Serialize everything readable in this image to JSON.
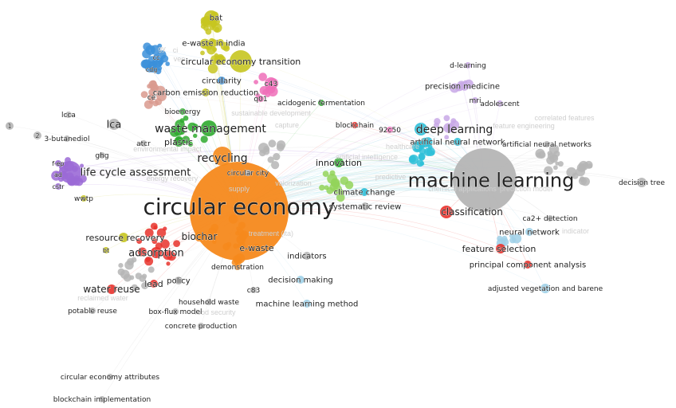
{
  "colors": {
    "orange": "#f5891c",
    "red": "#e8322c",
    "green": "#2eaa2e",
    "lightgreen": "#93d35a",
    "yellow": "#c7c520",
    "blue": "#3b8fd9",
    "purple": "#9b6ad6",
    "cyan": "#2ebfd8",
    "pink": "#ef6fb9",
    "salmon": "#d99a8e",
    "gray": "#b5b5b5",
    "lightblue": "#9fd0e8",
    "lightpurple": "#c8a8e6",
    "lightpink": "#f3a9c6"
  },
  "nodes": [
    {
      "label": "circular economy",
      "color": "orange",
      "size": 10
    },
    {
      "label": "machine learning",
      "color": "gray",
      "size": 8
    },
    {
      "label": "waste management",
      "color": "green",
      "size": 5
    },
    {
      "label": "recycling",
      "color": "orange",
      "size": 5
    },
    {
      "label": "life cycle assessment",
      "color": "purple",
      "size": 5
    },
    {
      "label": "deep learning",
      "color": "cyan",
      "size": 4
    },
    {
      "label": "classification",
      "color": "red",
      "size": 4
    },
    {
      "label": "lca",
      "color": "gray",
      "size": 3
    },
    {
      "label": "adsorption",
      "color": "red",
      "size": 3
    },
    {
      "label": "biochar",
      "color": "orange",
      "size": 3
    },
    {
      "label": "resource recovery",
      "color": "yellow",
      "size": 3
    },
    {
      "label": "water reuse",
      "color": "red",
      "size": 3
    },
    {
      "label": "circular economy transition",
      "color": "yellow",
      "size": 3
    },
    {
      "label": "plastic",
      "color": "green",
      "size": 2
    },
    {
      "label": "innovation",
      "color": "green",
      "size": 2
    },
    {
      "label": "feature selection",
      "color": "red",
      "size": 2
    },
    {
      "label": "e-waste",
      "color": "orange",
      "size": 2
    },
    {
      "label": "lead",
      "color": "red",
      "size": 2
    },
    {
      "label": "policy",
      "color": "gray",
      "size": 2
    },
    {
      "label": "precision medicine",
      "color": "lightpurple",
      "size": 2
    },
    {
      "label": "artificial neural network",
      "color": "cyan",
      "size": 2
    },
    {
      "label": "climate change",
      "color": "cyan",
      "size": 2
    },
    {
      "label": "systematic review",
      "color": "gray",
      "size": 2
    },
    {
      "label": "neural network",
      "color": "lightblue",
      "size": 2
    },
    {
      "label": "principal component analysis",
      "color": "red",
      "size": 2
    },
    {
      "label": "decision making",
      "color": "lightblue",
      "size": 2
    },
    {
      "label": "machine learning method",
      "color": "lightblue",
      "size": 2
    },
    {
      "label": "indicators",
      "color": "gray",
      "size": 2
    },
    {
      "label": "circularity",
      "color": "blue",
      "size": 2
    },
    {
      "label": "carbon emission reduction",
      "color": "yellow",
      "size": 2
    },
    {
      "label": "e-waste in india",
      "color": "yellow",
      "size": 2
    },
    {
      "label": "bat",
      "color": "yellow",
      "size": 2
    },
    {
      "label": "c43",
      "color": "pink",
      "size": 2
    },
    {
      "label": "q01",
      "color": "pink",
      "size": 1
    },
    {
      "label": "acidogenic fermentation",
      "color": "green",
      "size": 1
    },
    {
      "label": "blockchain",
      "color": "red",
      "size": 1
    },
    {
      "label": "92c50",
      "color": "pink",
      "size": 1
    },
    {
      "label": "d-learning",
      "color": "lightpurple",
      "size": 1
    },
    {
      "label": "mri",
      "color": "lightpurple",
      "size": 1
    },
    {
      "label": "adolescent",
      "color": "lightpurple",
      "size": 1
    },
    {
      "label": "artificial neural networks",
      "color": "gray",
      "size": 1
    },
    {
      "label": "decision tree",
      "color": "gray",
      "size": 1
    },
    {
      "label": "ca2+ detection",
      "color": "gray",
      "size": 1
    },
    {
      "label": "adjusted vegetation and barene",
      "color": "lightblue",
      "size": 1
    },
    {
      "label": "circular city",
      "color": "gray",
      "size": 1
    },
    {
      "label": "bioenergy",
      "color": "green",
      "size": 1
    },
    {
      "label": "atcr",
      "color": "gray",
      "size": 1
    },
    {
      "label": "ghg",
      "color": "gray",
      "size": 1
    },
    {
      "label": "wwtp",
      "color": "yellow",
      "size": 1
    },
    {
      "label": "lcca",
      "color": "gray",
      "size": 1
    },
    {
      "label": "3-butanediol",
      "color": "gray",
      "size": 1
    },
    {
      "label": "cstr",
      "color": "purple",
      "size": 1
    },
    {
      "label": "f-ep",
      "color": "purple",
      "size": 1
    },
    {
      "label": "ad",
      "color": "purple",
      "size": 1
    },
    {
      "label": "cc",
      "color": "blue",
      "size": 1
    },
    {
      "label": "cdg",
      "color": "blue",
      "size": 1
    },
    {
      "label": "ce",
      "color": "salmon",
      "size": 1
    },
    {
      "label": "bt",
      "color": "yellow",
      "size": 1
    },
    {
      "label": "household waste",
      "color": "gray",
      "size": 1
    },
    {
      "label": "box-flux model",
      "color": "gray",
      "size": 1
    },
    {
      "label": "concrete production",
      "color": "gray",
      "size": 1
    },
    {
      "label": "potable reuse",
      "color": "gray",
      "size": 1
    },
    {
      "label": "demonstration",
      "color": "orange",
      "size": 1
    },
    {
      "label": "c83",
      "color": "gray",
      "size": 1
    },
    {
      "label": "circular economy attributes",
      "color": "gray",
      "size": 1
    },
    {
      "label": "blockchain implementation",
      "color": "gray",
      "size": 1
    },
    {
      "label": "1",
      "color": "gray",
      "size": 1
    },
    {
      "label": "2",
      "color": "gray",
      "size": 1
    }
  ],
  "faded_labels": [
    "reclaimed water",
    "food security",
    "energy recovery",
    "valorization",
    "environmental impact",
    "sustainable development",
    "healthcare",
    "artificial intelligence",
    "predictive",
    "feature engineering",
    "correlated features",
    "chemical applications",
    "prediction model",
    "indicator",
    "treatment (ita)",
    "ci",
    "vee",
    "gy",
    "capture",
    "supply"
  ]
}
